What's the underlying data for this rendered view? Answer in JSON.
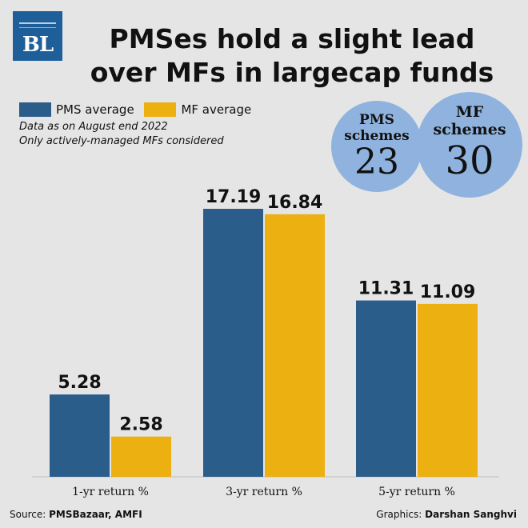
{
  "logo": {
    "text": "BL"
  },
  "title": {
    "line1": "PMSes hold a slight lead",
    "line2": "over MFs in largecap funds"
  },
  "legend": [
    {
      "label": "PMS average",
      "color": "#2b5d8a"
    },
    {
      "label": "MF average",
      "color": "#edb011"
    }
  ],
  "notes": {
    "line1": "Data as on August end 2022",
    "line2": "Only actively-managed MFs considered"
  },
  "bubbles": [
    {
      "line1": "PMS",
      "line2": "schemes",
      "value": "23"
    },
    {
      "line1": "MF",
      "line2": "schemes",
      "value": "30"
    }
  ],
  "chart_data": {
    "type": "bar",
    "categories": [
      "1-yr return %",
      "3-yr return %",
      "5-yr return %"
    ],
    "series": [
      {
        "name": "PMS average",
        "values": [
          5.28,
          17.19,
          11.31
        ],
        "labels": [
          "5.28",
          "17.19",
          "11.31"
        ],
        "color": "#2b5d8a"
      },
      {
        "name": "MF average",
        "values": [
          2.58,
          16.84,
          11.09
        ],
        "labels": [
          "2.58",
          "16.84",
          "11.09"
        ],
        "color": "#edb011"
      }
    ],
    "title": "PMSes hold a slight lead over MFs in largecap funds",
    "xlabel": "",
    "ylabel": "",
    "ylim": [
      0,
      17.19
    ],
    "grid": false
  },
  "footer": {
    "source_prefix": "Source:",
    "source": "PMSBazaar, AMFI",
    "graphics_prefix": "Graphics:",
    "graphics": "Darshan Sanghvi"
  }
}
